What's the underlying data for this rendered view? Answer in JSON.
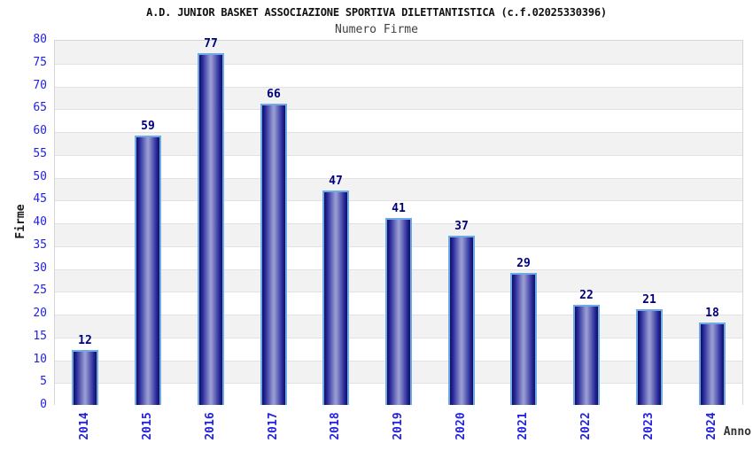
{
  "chart_data": {
    "type": "bar",
    "title": "A.D. JUNIOR BASKET ASSOCIAZIONE SPORTIVA DILETTANTISTICA (c.f.02025330396)",
    "subtitle": "Numero Firme",
    "xlabel": "Anno",
    "ylabel": "Firme",
    "categories": [
      "2014",
      "2015",
      "2016",
      "2017",
      "2018",
      "2019",
      "2020",
      "2021",
      "2022",
      "2023",
      "2024"
    ],
    "values": [
      12,
      59,
      77,
      66,
      47,
      41,
      37,
      29,
      22,
      21,
      18
    ],
    "ylim": [
      0,
      80
    ],
    "ytick_step": 5,
    "yticks": [
      0,
      5,
      10,
      15,
      20,
      25,
      30,
      35,
      40,
      45,
      50,
      55,
      60,
      65,
      70,
      75,
      80
    ],
    "grid": true,
    "legend": false,
    "colors": {
      "bar_dark": "#10105c",
      "bar_edge_mid": "#26269a",
      "bar_light": "#989cd2",
      "bar_border": "#6fa9e8",
      "value_label": "#00007d",
      "axis_text": "#2323dc",
      "band_gray": "#f2f2f2",
      "band_white": "#ffffff",
      "gridline": "#e2e2e2",
      "frame": "#d6d6d6",
      "title_text": "#111111",
      "subtitle_text": "#404040"
    }
  }
}
